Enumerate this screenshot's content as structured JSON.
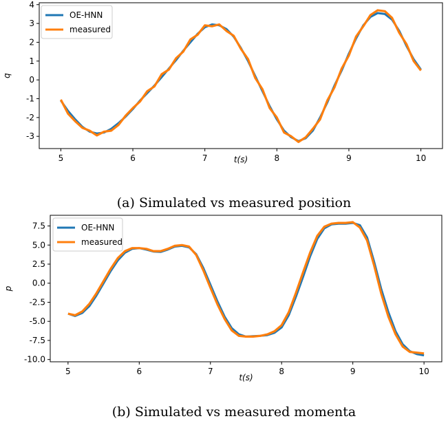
{
  "chart_data": [
    {
      "type": "line",
      "title": "",
      "xlabel": "t(s)",
      "ylabel": "q",
      "xlim": [
        4.7,
        10.3
      ],
      "ylim": [
        -3.65,
        4.1
      ],
      "xticks": [
        5,
        6,
        7,
        8,
        9,
        10
      ],
      "yticks": [
        -3,
        -2,
        -1,
        0,
        1,
        2,
        3,
        4
      ],
      "legend_position": "top-left",
      "grid": false,
      "caption": "(a) Simulated vs measured position",
      "series": [
        {
          "name": "OE-HNN",
          "color": "#1f77b4",
          "x": [
            5.0,
            5.1,
            5.2,
            5.3,
            5.4,
            5.5,
            5.6,
            5.7,
            5.8,
            5.9,
            6.0,
            6.1,
            6.2,
            6.3,
            6.4,
            6.5,
            6.6,
            6.7,
            6.8,
            6.9,
            7.0,
            7.1,
            7.2,
            7.3,
            7.4,
            7.5,
            7.6,
            7.7,
            7.8,
            7.9,
            8.0,
            8.1,
            8.2,
            8.3,
            8.4,
            8.5,
            8.6,
            8.7,
            8.8,
            8.9,
            9.0,
            9.1,
            9.2,
            9.3,
            9.4,
            9.5,
            9.6,
            9.7,
            9.8,
            9.9,
            10.0
          ],
          "y": [
            -1.1,
            -1.65,
            -2.1,
            -2.5,
            -2.75,
            -2.85,
            -2.8,
            -2.6,
            -2.3,
            -1.95,
            -1.55,
            -1.1,
            -0.7,
            -0.3,
            0.15,
            0.6,
            1.05,
            1.55,
            2.0,
            2.45,
            2.8,
            2.95,
            2.9,
            2.7,
            2.3,
            1.7,
            1.0,
            0.2,
            -0.6,
            -1.4,
            -2.1,
            -2.7,
            -3.05,
            -3.25,
            -3.1,
            -2.7,
            -2.0,
            -1.2,
            -0.3,
            0.5,
            1.4,
            2.2,
            2.9,
            3.35,
            3.55,
            3.5,
            3.2,
            2.6,
            1.8,
            1.1,
            0.55
          ]
        },
        {
          "name": "measured",
          "color": "#ff7f0e",
          "x": [
            5.0,
            5.1,
            5.2,
            5.3,
            5.4,
            5.5,
            5.6,
            5.7,
            5.8,
            5.9,
            6.0,
            6.1,
            6.2,
            6.3,
            6.4,
            6.5,
            6.6,
            6.7,
            6.8,
            6.9,
            7.0,
            7.1,
            7.2,
            7.3,
            7.4,
            7.5,
            7.6,
            7.7,
            7.8,
            7.9,
            8.0,
            8.1,
            8.2,
            8.3,
            8.4,
            8.5,
            8.6,
            8.7,
            8.8,
            8.9,
            9.0,
            9.1,
            9.2,
            9.3,
            9.4,
            9.5,
            9.6,
            9.7,
            9.8,
            9.9,
            10.0
          ],
          "y": [
            -1.05,
            -1.8,
            -2.2,
            -2.55,
            -2.7,
            -2.95,
            -2.75,
            -2.7,
            -2.4,
            -1.9,
            -1.5,
            -1.15,
            -0.6,
            -0.35,
            0.3,
            0.55,
            1.15,
            1.5,
            2.15,
            2.4,
            2.9,
            2.85,
            2.95,
            2.6,
            2.35,
            1.65,
            1.1,
            0.1,
            -0.5,
            -1.5,
            -2.0,
            -2.8,
            -3.0,
            -3.3,
            -3.05,
            -2.6,
            -2.1,
            -1.1,
            -0.4,
            0.6,
            1.3,
            2.3,
            2.85,
            3.45,
            3.7,
            3.65,
            3.3,
            2.5,
            1.9,
            1.0,
            0.5
          ]
        }
      ]
    },
    {
      "type": "line",
      "title": "",
      "xlabel": "t(s)",
      "ylabel": "p",
      "xlim": [
        4.75,
        10.25
      ],
      "ylim": [
        -10.3,
        8.9
      ],
      "xticks": [
        5,
        6,
        7,
        8,
        9,
        10
      ],
      "yticks": [
        -10.0,
        -7.5,
        -5.0,
        -2.5,
        0.0,
        2.5,
        5.0,
        7.5
      ],
      "legend_position": "top-left",
      "grid": false,
      "caption": "(b) Simulated vs measured momenta",
      "series": [
        {
          "name": "OE-HNN",
          "color": "#1f77b4",
          "x": [
            5.0,
            5.1,
            5.2,
            5.3,
            5.4,
            5.5,
            5.6,
            5.7,
            5.8,
            5.9,
            6.0,
            6.1,
            6.2,
            6.3,
            6.4,
            6.5,
            6.6,
            6.7,
            6.8,
            6.9,
            7.0,
            7.1,
            7.2,
            7.3,
            7.4,
            7.5,
            7.6,
            7.7,
            7.8,
            7.9,
            8.0,
            8.1,
            8.2,
            8.3,
            8.4,
            8.5,
            8.6,
            8.7,
            8.8,
            8.9,
            9.0,
            9.1,
            9.2,
            9.3,
            9.4,
            9.5,
            9.6,
            9.7,
            9.8,
            9.9,
            10.0
          ],
          "y": [
            -4.0,
            -4.3,
            -3.9,
            -3.0,
            -1.6,
            0.0,
            1.6,
            3.0,
            4.0,
            4.5,
            4.6,
            4.4,
            4.15,
            4.1,
            4.4,
            4.8,
            4.9,
            4.7,
            3.8,
            2.0,
            -0.2,
            -2.4,
            -4.4,
            -5.9,
            -6.7,
            -7.0,
            -6.95,
            -6.9,
            -6.8,
            -6.5,
            -5.8,
            -4.2,
            -1.8,
            0.8,
            3.5,
            5.8,
            7.2,
            7.7,
            7.8,
            7.8,
            7.9,
            7.6,
            6.0,
            2.8,
            -0.8,
            -3.8,
            -6.3,
            -8.0,
            -8.9,
            -9.3,
            -9.45
          ]
        },
        {
          "name": "measured",
          "color": "#ff7f0e",
          "x": [
            5.0,
            5.1,
            5.2,
            5.3,
            5.4,
            5.5,
            5.6,
            5.7,
            5.8,
            5.9,
            6.0,
            6.1,
            6.2,
            6.3,
            6.4,
            6.5,
            6.6,
            6.7,
            6.8,
            6.9,
            7.0,
            7.1,
            7.2,
            7.3,
            7.4,
            7.5,
            7.6,
            7.7,
            7.8,
            7.9,
            8.0,
            8.1,
            8.2,
            8.3,
            8.4,
            8.5,
            8.6,
            8.7,
            8.8,
            8.9,
            9.0,
            9.1,
            9.2,
            9.3,
            9.4,
            9.5,
            9.6,
            9.7,
            9.8,
            9.9,
            10.0
          ],
          "y": [
            -4.0,
            -4.2,
            -3.7,
            -2.7,
            -1.3,
            0.3,
            1.9,
            3.3,
            4.2,
            4.6,
            4.6,
            4.5,
            4.2,
            4.2,
            4.5,
            4.9,
            5.0,
            4.8,
            3.7,
            1.7,
            -0.6,
            -2.8,
            -4.7,
            -6.2,
            -6.9,
            -7.0,
            -7.0,
            -6.9,
            -6.7,
            -6.3,
            -5.5,
            -3.8,
            -1.3,
            1.4,
            4.0,
            6.2,
            7.4,
            7.8,
            7.9,
            7.9,
            8.0,
            7.3,
            5.6,
            2.3,
            -1.4,
            -4.4,
            -6.7,
            -8.3,
            -9.0,
            -9.1,
            -9.2
          ]
        }
      ]
    }
  ]
}
